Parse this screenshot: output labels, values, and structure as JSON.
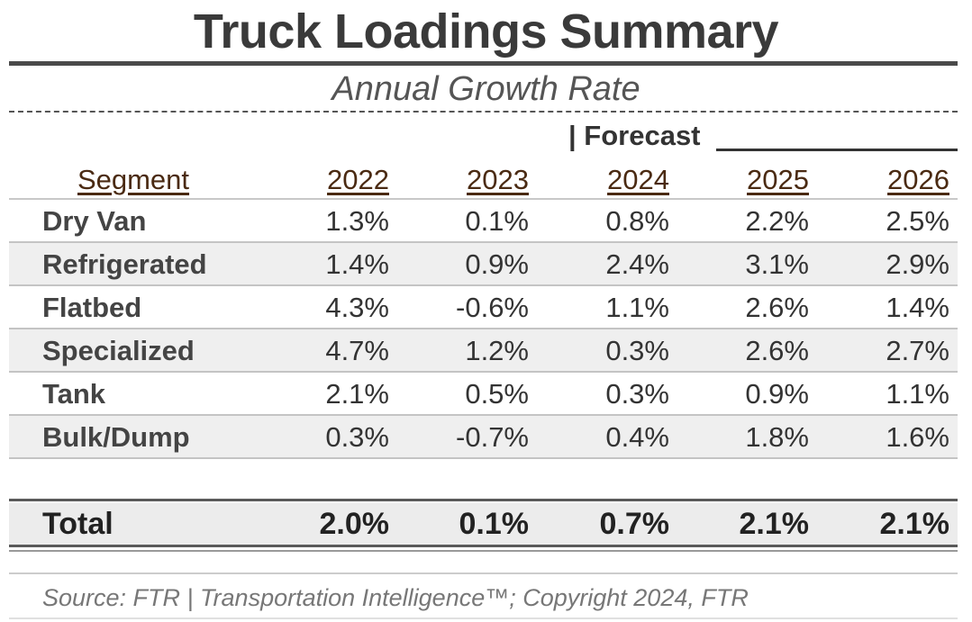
{
  "title": "Truck Loadings Summary",
  "subtitle": "Annual Growth Rate",
  "forecast_label": "| Forecast",
  "source": "Source: FTR | Transportation Intelligence™; Copyright 2024, FTR",
  "colors": {
    "header_text": "#4a2a12",
    "row_alt": "#efefef",
    "text": "#333333"
  },
  "chart_data": {
    "type": "table",
    "title": "Truck Loadings Summary",
    "subtitle": "Annual Growth Rate",
    "segment_header": "Segment",
    "columns": [
      "2022",
      "2023",
      "2024",
      "2025",
      "2026"
    ],
    "rows": [
      {
        "segment": "Dry Van",
        "values": [
          "1.3%",
          "0.1%",
          "0.8%",
          "2.2%",
          "2.5%"
        ]
      },
      {
        "segment": "Refrigerated",
        "values": [
          "1.4%",
          "0.9%",
          "2.4%",
          "3.1%",
          "2.9%"
        ]
      },
      {
        "segment": "Flatbed",
        "values": [
          "4.3%",
          "-0.6%",
          "1.1%",
          "2.6%",
          "1.4%"
        ]
      },
      {
        "segment": "Specialized",
        "values": [
          "4.7%",
          "1.2%",
          "0.3%",
          "2.6%",
          "2.7%"
        ]
      },
      {
        "segment": "Tank",
        "values": [
          "2.1%",
          "0.5%",
          "0.3%",
          "0.9%",
          "1.1%"
        ]
      },
      {
        "segment": "Bulk/Dump",
        "values": [
          "0.3%",
          "-0.7%",
          "0.4%",
          "1.8%",
          "1.6%"
        ]
      }
    ],
    "total": {
      "label": "Total",
      "values": [
        "2.0%",
        "0.1%",
        "0.7%",
        "2.1%",
        "2.1%"
      ]
    }
  }
}
